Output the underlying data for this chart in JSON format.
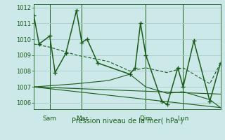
{
  "background_color": "#cce8e8",
  "grid_color": "#aacccc",
  "line_color": "#1a5c1a",
  "title": "Pression niveau de la mer( hPa )",
  "ylabel_vals": [
    1006,
    1007,
    1008,
    1009,
    1010,
    1011,
    1012
  ],
  "ylim": [
    1005.6,
    1012.2
  ],
  "xlim": [
    0,
    35
  ],
  "day_lines": [
    3,
    9,
    21,
    28
  ],
  "day_ticks": [
    {
      "x": 3,
      "label": "Sam"
    },
    {
      "x": 9,
      "label": "Mar"
    },
    {
      "x": 21,
      "label": "Dim"
    },
    {
      "x": 28,
      "label": "Lun"
    }
  ],
  "series_main": {
    "x": [
      0,
      1,
      3,
      4,
      6,
      8,
      9,
      10,
      12,
      18,
      19,
      20,
      21,
      24,
      25,
      27,
      28,
      30,
      33,
      35
    ],
    "y": [
      1011.5,
      1009.7,
      1010.2,
      1007.9,
      1009.1,
      1011.8,
      1009.8,
      1010.0,
      1008.5,
      1007.8,
      1008.2,
      1011.0,
      1009.0,
      1006.1,
      1005.9,
      1008.2,
      1007.0,
      1009.9,
      1006.1,
      1008.5
    ],
    "linewidth": 1.1,
    "marker": "+",
    "markersize": 4.5,
    "markeredgewidth": 1.0
  },
  "series_env_upper": {
    "x": [
      0,
      3,
      8,
      14,
      18,
      21,
      25,
      28,
      33,
      35
    ],
    "y": [
      1009.7,
      1009.5,
      1009.0,
      1008.6,
      1008.0,
      1008.2,
      1007.9,
      1008.2,
      1007.2,
      1008.5
    ],
    "linewidth": 0.8,
    "dashes": [
      4,
      2
    ]
  },
  "series_trend1": {
    "x": [
      0,
      35
    ],
    "y": [
      1007.0,
      1006.55
    ],
    "linewidth": 0.8
  },
  "series_trend2": {
    "x": [
      0,
      35
    ],
    "y": [
      1007.0,
      1005.7
    ],
    "linewidth": 0.8
  },
  "series_trend3": {
    "x": [
      0,
      8,
      14,
      18,
      21,
      25,
      28,
      33,
      35
    ],
    "y": [
      1007.0,
      1007.2,
      1007.4,
      1007.8,
      1007.0,
      1006.6,
      1006.7,
      1006.2,
      1005.7
    ],
    "linewidth": 0.8
  }
}
